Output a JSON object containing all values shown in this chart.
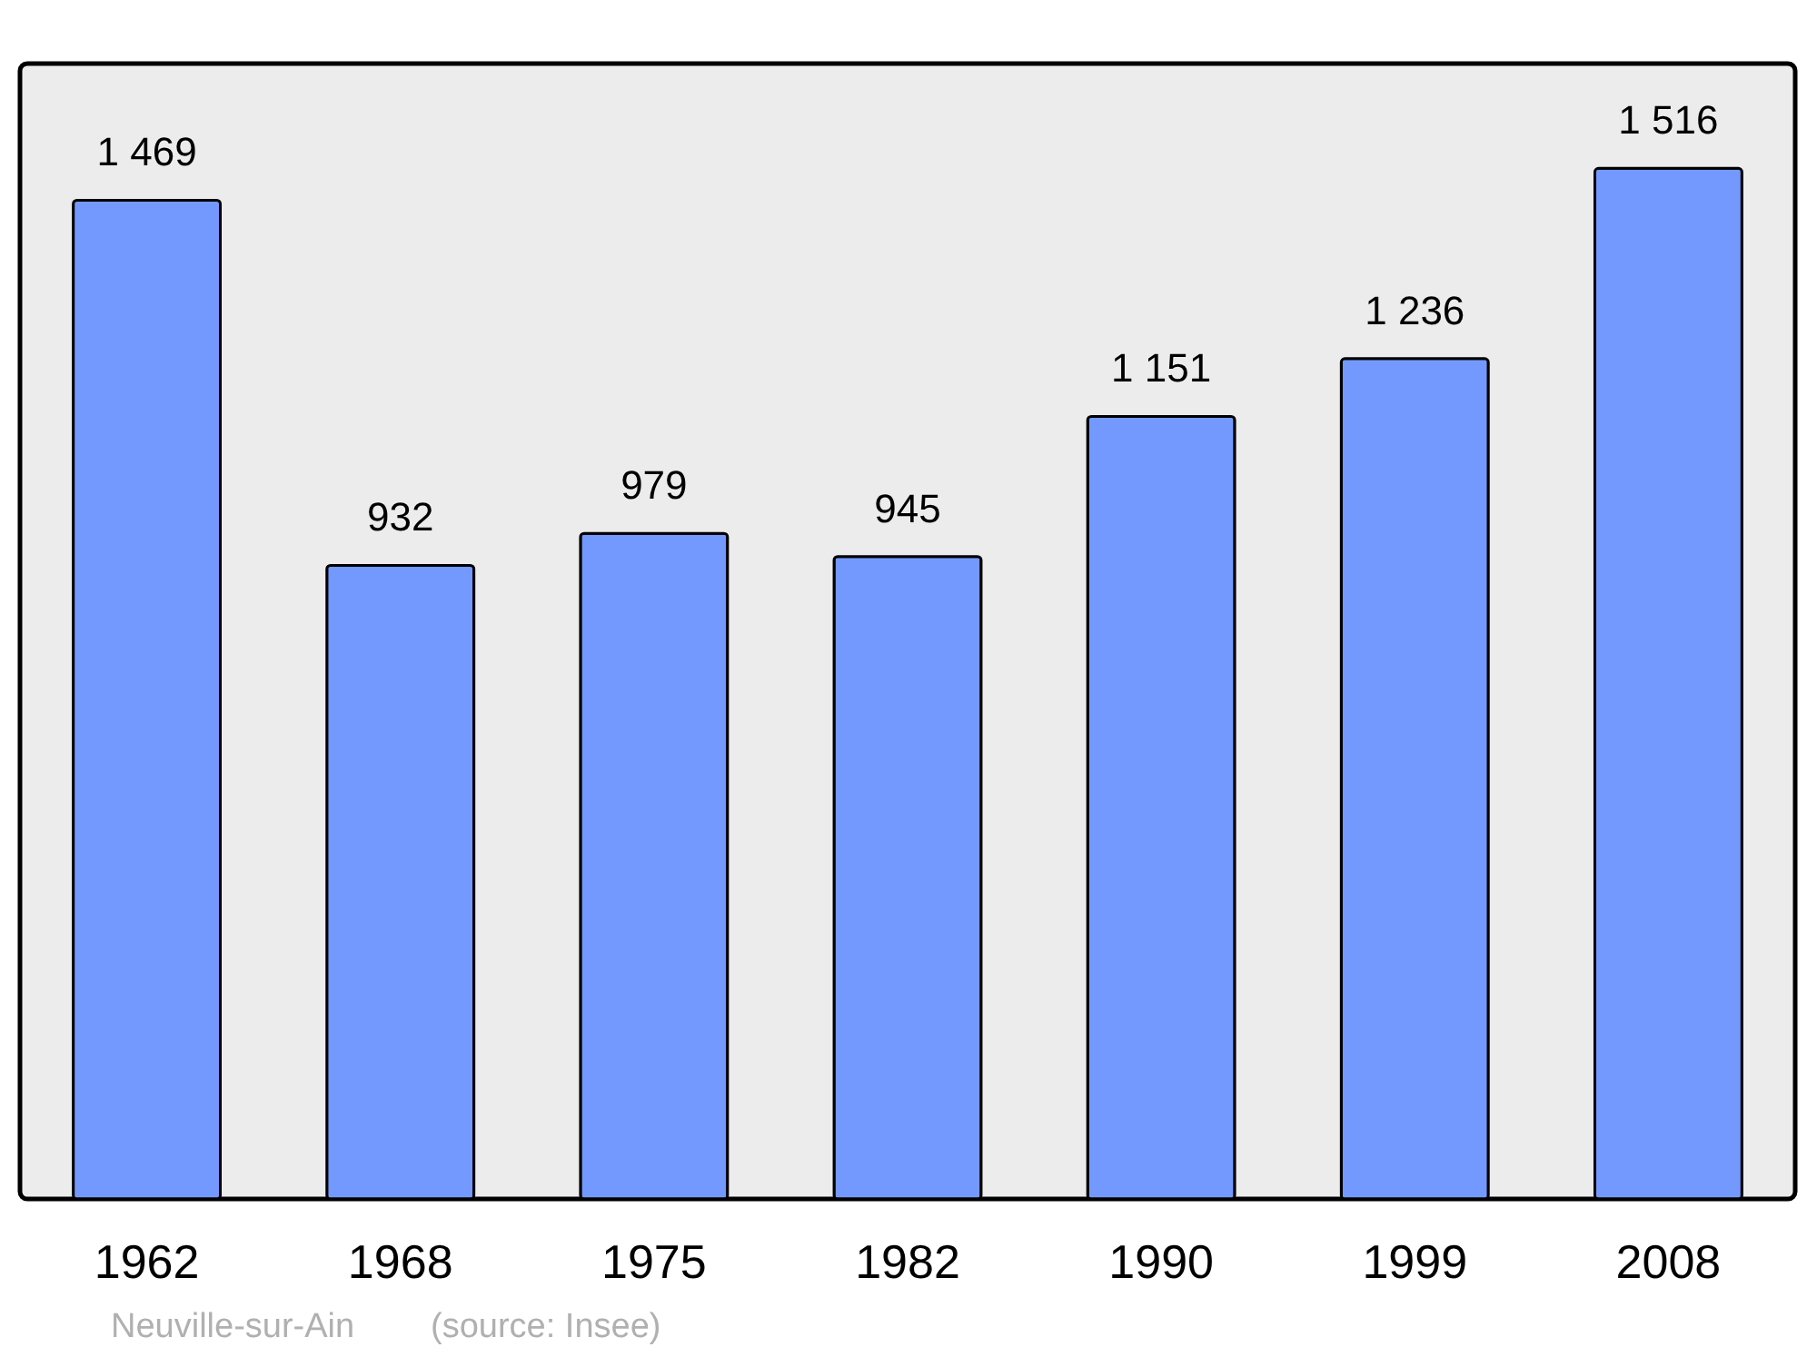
{
  "chart_data": {
    "type": "bar",
    "categories": [
      "1962",
      "1968",
      "1975",
      "1982",
      "1990",
      "1999",
      "2008"
    ],
    "values": [
      1469,
      932,
      979,
      945,
      1151,
      1236,
      1516
    ],
    "value_labels": [
      "1 469",
      "932",
      "979",
      "945",
      "1 151",
      "1 236",
      "1 516"
    ],
    "color": "#7399ff",
    "ylim": [
      0,
      1670
    ],
    "grid": false,
    "annotations": [
      "Neuville-sur-Ain",
      "(source: Insee)"
    ]
  }
}
